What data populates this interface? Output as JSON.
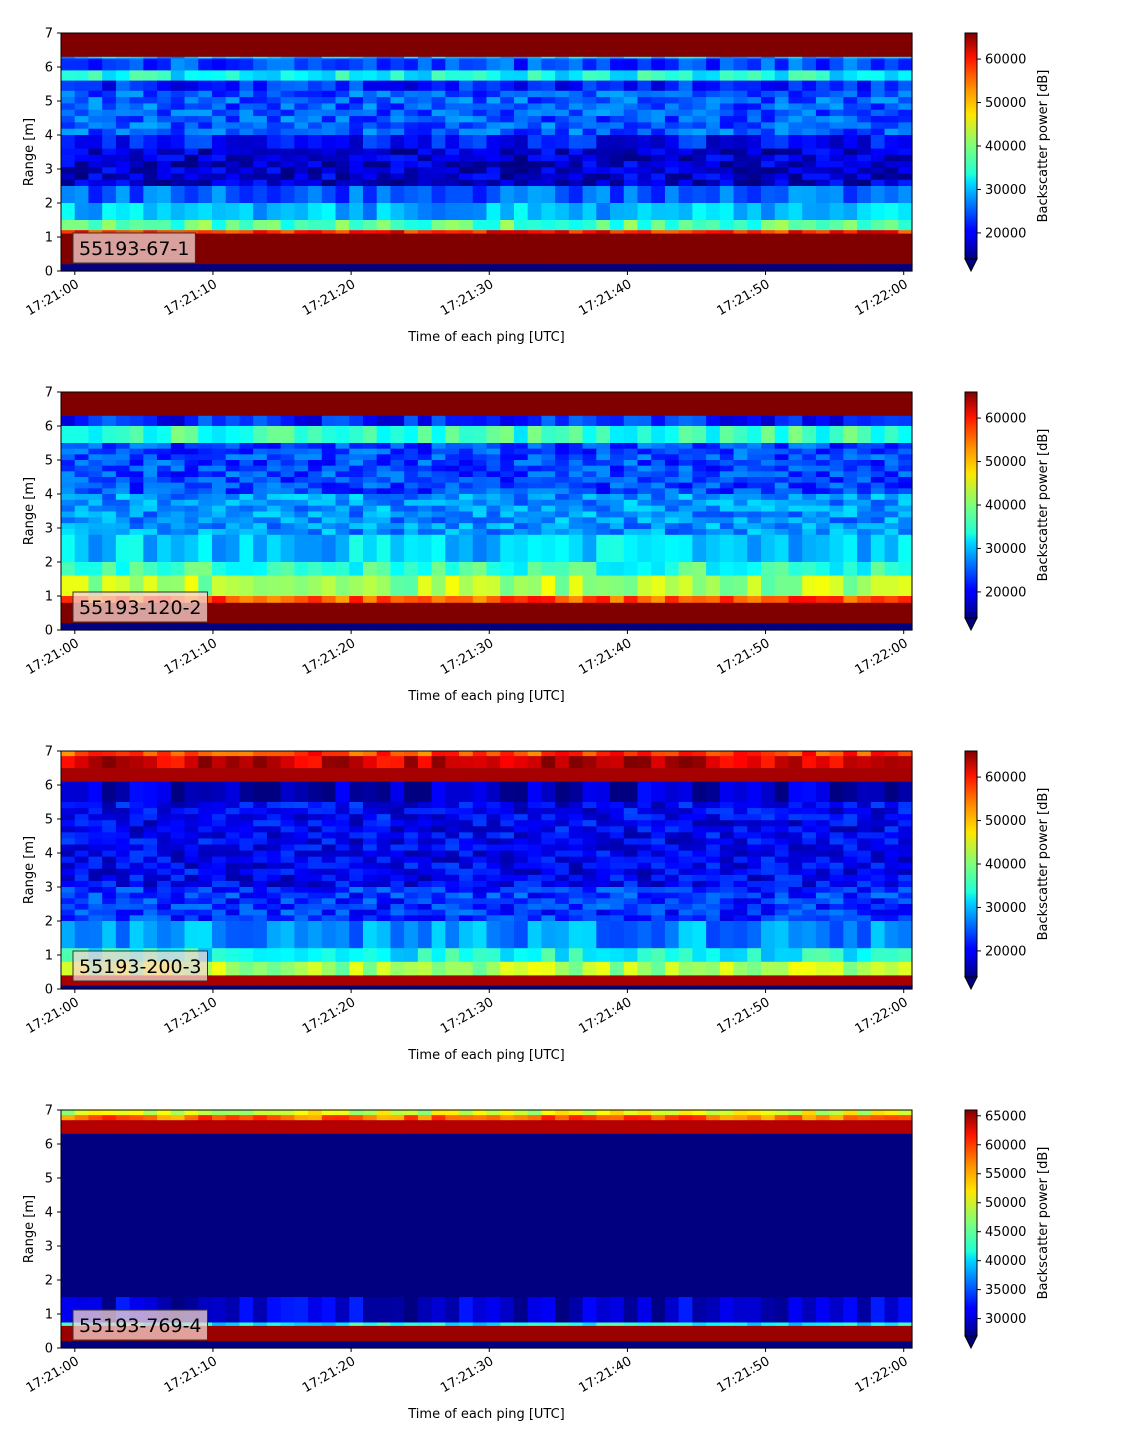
{
  "chart_data": [
    {
      "type": "heatmap",
      "label": "55193-67-1",
      "xlabel": "Time of each ping [UTC]",
      "ylabel": "Range [m]",
      "colorbar_label": "Backscatter power [dB]",
      "x_ticks": [
        "17:21:00",
        "17:21:10",
        "17:21:20",
        "17:21:30",
        "17:21:40",
        "17:21:50",
        "17:22:00"
      ],
      "x_range_s": [
        -1,
        60.6
      ],
      "y_ticks": [
        0,
        1,
        2,
        3,
        4,
        5,
        6,
        7
      ],
      "ylim": [
        0,
        7
      ],
      "clim": [
        14000,
        66000
      ],
      "cbar_ticks": [
        20000,
        30000,
        40000,
        50000,
        60000
      ],
      "colormap": "jet",
      "bands": [
        {
          "y0": 6.3,
          "y1": 7.0,
          "v": 66000
        },
        {
          "y0": 6.25,
          "y1": 6.3,
          "v": 30000
        },
        {
          "y0": 5.9,
          "y1": 6.25,
          "v": 24000
        },
        {
          "y0": 5.6,
          "y1": 5.9,
          "v": 34000
        },
        {
          "y0": 5.3,
          "y1": 5.6,
          "v": 22000
        },
        {
          "y0": 4.0,
          "y1": 5.3,
          "v": 25000
        },
        {
          "y0": 3.6,
          "y1": 4.0,
          "v": 21000
        },
        {
          "y0": 2.5,
          "y1": 3.6,
          "v": 18000
        },
        {
          "y0": 2.0,
          "y1": 2.5,
          "v": 25000
        },
        {
          "y0": 1.5,
          "y1": 2.0,
          "v": 30000
        },
        {
          "y0": 1.2,
          "y1": 1.5,
          "v": 38000
        },
        {
          "y0": 1.1,
          "y1": 1.2,
          "v": 58000
        },
        {
          "y0": 0.2,
          "y1": 1.1,
          "v": 66000
        },
        {
          "y0": 0.0,
          "y1": 0.2,
          "v": 14000
        }
      ]
    },
    {
      "type": "heatmap",
      "label": "55193-120-2",
      "xlabel": "Time of each ping [UTC]",
      "ylabel": "Range [m]",
      "colorbar_label": "Backscatter power [dB]",
      "x_ticks": [
        "17:21:00",
        "17:21:10",
        "17:21:20",
        "17:21:30",
        "17:21:40",
        "17:21:50",
        "17:22:00"
      ],
      "x_range_s": [
        -1,
        60.6
      ],
      "y_ticks": [
        0,
        1,
        2,
        3,
        4,
        5,
        6,
        7
      ],
      "ylim": [
        0,
        7
      ],
      "clim": [
        14000,
        66000
      ],
      "cbar_ticks": [
        20000,
        30000,
        40000,
        50000,
        60000
      ],
      "colormap": "jet",
      "bands": [
        {
          "y0": 6.3,
          "y1": 7.0,
          "v": 66000
        },
        {
          "y0": 6.0,
          "y1": 6.3,
          "v": 22000
        },
        {
          "y0": 5.5,
          "y1": 6.0,
          "v": 36000
        },
        {
          "y0": 4.0,
          "y1": 5.5,
          "v": 24000
        },
        {
          "y0": 2.8,
          "y1": 4.0,
          "v": 28000
        },
        {
          "y0": 2.0,
          "y1": 2.8,
          "v": 31000
        },
        {
          "y0": 1.6,
          "y1": 2.0,
          "v": 36000
        },
        {
          "y0": 1.0,
          "y1": 1.6,
          "v": 42000
        },
        {
          "y0": 0.8,
          "y1": 1.0,
          "v": 55000
        },
        {
          "y0": 0.2,
          "y1": 0.8,
          "v": 66000
        },
        {
          "y0": 0.0,
          "y1": 0.2,
          "v": 14000
        }
      ]
    },
    {
      "type": "heatmap",
      "label": "55193-200-3",
      "xlabel": "Time of each ping [UTC]",
      "ylabel": "Range [m]",
      "colorbar_label": "Backscatter power [dB]",
      "x_ticks": [
        "17:21:00",
        "17:21:10",
        "17:21:20",
        "17:21:30",
        "17:21:40",
        "17:21:50",
        "17:22:00"
      ],
      "x_range_s": [
        -1,
        60.6
      ],
      "y_ticks": [
        0,
        1,
        2,
        3,
        4,
        5,
        6,
        7
      ],
      "ylim": [
        0,
        7
      ],
      "clim": [
        14000,
        66000
      ],
      "cbar_ticks": [
        20000,
        30000,
        40000,
        50000,
        60000
      ],
      "colormap": "jet",
      "bands": [
        {
          "y0": 6.85,
          "y1": 7.0,
          "v": 56000
        },
        {
          "y0": 6.5,
          "y1": 6.85,
          "v": 62000
        },
        {
          "y0": 6.1,
          "y1": 6.5,
          "v": 64000
        },
        {
          "y0": 5.5,
          "y1": 6.1,
          "v": 17000
        },
        {
          "y0": 3.0,
          "y1": 5.5,
          "v": 20000
        },
        {
          "y0": 2.0,
          "y1": 3.0,
          "v": 23000
        },
        {
          "y0": 1.2,
          "y1": 2.0,
          "v": 28000
        },
        {
          "y0": 0.8,
          "y1": 1.2,
          "v": 34000
        },
        {
          "y0": 0.4,
          "y1": 0.8,
          "v": 42000
        },
        {
          "y0": 0.1,
          "y1": 0.4,
          "v": 64000
        },
        {
          "y0": 0.0,
          "y1": 0.1,
          "v": 14000
        }
      ]
    },
    {
      "type": "heatmap",
      "label": "55193-769-4",
      "xlabel": "Time of each ping [UTC]",
      "ylabel": "Range [m]",
      "colorbar_label": "Backscatter power [dB]",
      "x_ticks": [
        "17:21:00",
        "17:21:10",
        "17:21:20",
        "17:21:30",
        "17:21:40",
        "17:21:50",
        "17:22:00"
      ],
      "x_range_s": [
        -1,
        60.6
      ],
      "y_ticks": [
        0,
        1,
        2,
        3,
        4,
        5,
        6,
        7
      ],
      "ylim": [
        0,
        7
      ],
      "clim": [
        27000,
        66000
      ],
      "cbar_ticks": [
        30000,
        35000,
        40000,
        45000,
        50000,
        55000,
        60000,
        65000
      ],
      "colormap": "jet",
      "bands": [
        {
          "y0": 6.85,
          "y1": 7.0,
          "v": 50000
        },
        {
          "y0": 6.7,
          "y1": 6.85,
          "v": 57000
        },
        {
          "y0": 6.3,
          "y1": 6.7,
          "v": 64000
        },
        {
          "y0": 1.5,
          "y1": 6.3,
          "v": 27000
        },
        {
          "y0": 0.75,
          "y1": 1.5,
          "v": 30000
        },
        {
          "y0": 0.65,
          "y1": 0.75,
          "v": 42000
        },
        {
          "y0": 0.2,
          "y1": 0.65,
          "v": 65000
        },
        {
          "y0": 0.0,
          "y1": 0.2,
          "v": 27000
        }
      ]
    }
  ]
}
